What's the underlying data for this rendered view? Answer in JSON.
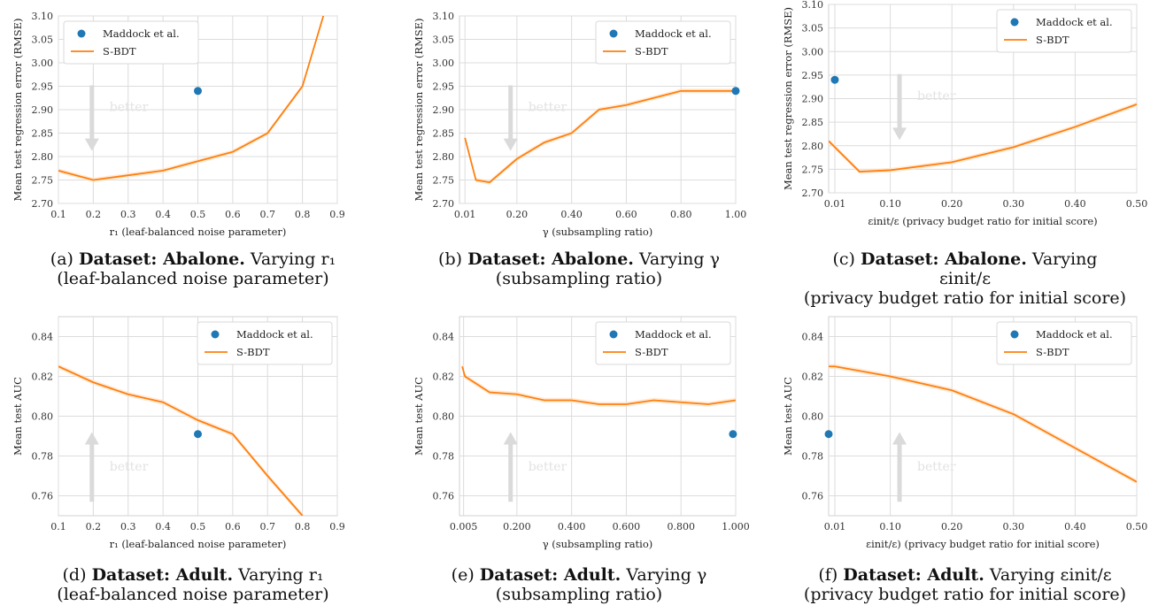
{
  "colors": {
    "maddock": "#1f77b4",
    "sbdt": "#ff7f0e",
    "band": "#fde2c8",
    "grid": "#dcdcdc",
    "arrow": "#dadada"
  },
  "chart_data": [
    {
      "type": "line",
      "xlabel": "r₁ (leaf-balanced noise parameter)",
      "ylabel": "Mean test regression error (RMSE)",
      "xlim": [
        0.1,
        0.9
      ],
      "ylim": [
        2.7,
        3.1
      ],
      "xticks": [
        0.1,
        0.2,
        0.3,
        0.4,
        0.5,
        0.6,
        0.7,
        0.8,
        0.9
      ],
      "xtick_labels": [
        "0.1",
        "0.2",
        "0.3",
        "0.4",
        "0.5",
        "0.6",
        "0.7",
        "0.8",
        "0.9"
      ],
      "yticks": [
        2.7,
        2.75,
        2.8,
        2.85,
        2.9,
        2.95,
        3.0,
        3.05,
        3.1
      ],
      "ytick_labels": [
        "2.70",
        "2.75",
        "2.80",
        "2.85",
        "2.90",
        "2.95",
        "3.00",
        "3.05",
        "3.10"
      ],
      "legend": [
        "Maddock et al.",
        "S-BDT"
      ],
      "legend_position": "top-left",
      "better_label": "better",
      "better_direction": "down",
      "series": [
        {
          "name": "S-BDT",
          "x": [
            0.1,
            0.2,
            0.3,
            0.4,
            0.5,
            0.6,
            0.7,
            0.8,
            0.86
          ],
          "y": [
            2.77,
            2.75,
            2.76,
            2.77,
            2.79,
            2.81,
            2.85,
            2.95,
            3.1
          ]
        },
        {
          "name": "Maddock et al.",
          "x": [
            0.5
          ],
          "y": [
            2.94
          ]
        }
      ]
    },
    {
      "type": "line",
      "xlabel": "γ (subsampling ratio)",
      "ylabel": "Mean test regression error (RMSE)",
      "xlim": [
        -0.01,
        1.0
      ],
      "ylim": [
        2.7,
        3.1
      ],
      "xticks": [
        0.01,
        0.2,
        0.4,
        0.6,
        0.8,
        1.0
      ],
      "xtick_labels": [
        "0.01",
        "0.20",
        "0.40",
        "0.60",
        "0.80",
        "1.00"
      ],
      "yticks": [
        2.7,
        2.75,
        2.8,
        2.85,
        2.9,
        2.95,
        3.0,
        3.05,
        3.1
      ],
      "ytick_labels": [
        "2.70",
        "2.75",
        "2.80",
        "2.85",
        "2.90",
        "2.95",
        "3.00",
        "3.05",
        "3.10"
      ],
      "legend": [
        "Maddock et al.",
        "S-BDT"
      ],
      "legend_position": "top-right",
      "better_label": "better",
      "better_direction": "down",
      "series": [
        {
          "name": "S-BDT",
          "x": [
            0.01,
            0.05,
            0.1,
            0.2,
            0.3,
            0.4,
            0.5,
            0.6,
            0.7,
            0.8,
            0.9,
            1.0
          ],
          "y": [
            2.84,
            2.75,
            2.745,
            2.795,
            2.83,
            2.85,
            2.9,
            2.91,
            2.925,
            2.94,
            2.94,
            2.94
          ]
        },
        {
          "name": "Maddock et al.",
          "x": [
            1.0
          ],
          "y": [
            2.94
          ]
        }
      ]
    },
    {
      "type": "line",
      "xlabel": "εinit/ε (privacy budget ratio for initial score)",
      "ylabel": "Mean test regression error (RMSE)",
      "xlim": [
        0.0,
        0.5
      ],
      "ylim": [
        2.7,
        3.1
      ],
      "xticks": [
        0.01,
        0.1,
        0.2,
        0.3,
        0.4,
        0.5
      ],
      "xtick_labels": [
        "0.01",
        "0.10",
        "0.20",
        "0.30",
        "0.40",
        "0.50"
      ],
      "yticks": [
        2.7,
        2.75,
        2.8,
        2.85,
        2.9,
        2.95,
        3.0,
        3.05,
        3.1
      ],
      "ytick_labels": [
        "2.70",
        "2.75",
        "2.80",
        "2.85",
        "2.90",
        "2.95",
        "3.00",
        "3.05",
        "3.10"
      ],
      "legend": [
        "Maddock et al.",
        "S-BDT"
      ],
      "legend_position": "top-right",
      "better_label": "better",
      "better_direction": "down",
      "series": [
        {
          "name": "S-BDT",
          "x": [
            0.0,
            0.05,
            0.1,
            0.2,
            0.3,
            0.4,
            0.5
          ],
          "y": [
            2.81,
            2.745,
            2.748,
            2.765,
            2.797,
            2.84,
            2.888
          ]
        },
        {
          "name": "Maddock et al.",
          "x": [
            0.01
          ],
          "y": [
            2.94
          ]
        }
      ]
    },
    {
      "type": "line",
      "xlabel": "r₁ (leaf-balanced noise parameter)",
      "ylabel": "Mean test AUC",
      "xlim": [
        0.1,
        0.9
      ],
      "ylim": [
        0.75,
        0.85
      ],
      "xticks": [
        0.1,
        0.2,
        0.3,
        0.4,
        0.5,
        0.6,
        0.7,
        0.8,
        0.9
      ],
      "xtick_labels": [
        "0.1",
        "0.2",
        "0.3",
        "0.4",
        "0.5",
        "0.6",
        "0.7",
        "0.8",
        "0.9"
      ],
      "yticks": [
        0.76,
        0.78,
        0.8,
        0.82,
        0.84
      ],
      "ytick_labels": [
        "0.76",
        "0.78",
        "0.80",
        "0.82",
        "0.84"
      ],
      "legend": [
        "Maddock et al.",
        "S-BDT"
      ],
      "legend_position": "top-right",
      "better_label": "better",
      "better_direction": "up",
      "series": [
        {
          "name": "S-BDT",
          "x": [
            0.1,
            0.2,
            0.3,
            0.4,
            0.5,
            0.6,
            0.7,
            0.8
          ],
          "y": [
            0.825,
            0.817,
            0.811,
            0.807,
            0.798,
            0.791,
            0.77,
            0.75
          ]
        },
        {
          "name": "Maddock et al.",
          "x": [
            0.5
          ],
          "y": [
            0.791
          ]
        }
      ]
    },
    {
      "type": "line",
      "xlabel": "γ (subsampling ratio)",
      "ylabel": "Mean test AUC",
      "xlim": [
        -0.01,
        1.0
      ],
      "ylim": [
        0.75,
        0.85
      ],
      "xticks": [
        0.005,
        0.2,
        0.4,
        0.6,
        0.8,
        1.0
      ],
      "xtick_labels": [
        "0.005",
        "0.200",
        "0.400",
        "0.600",
        "0.800",
        "1.000"
      ],
      "yticks": [
        0.76,
        0.78,
        0.8,
        0.82,
        0.84
      ],
      "ytick_labels": [
        "0.76",
        "0.78",
        "0.80",
        "0.82",
        "0.84"
      ],
      "legend": [
        "Maddock et al.",
        "S-BDT"
      ],
      "legend_position": "top-right",
      "better_label": "better",
      "better_direction": "up",
      "series": [
        {
          "name": "S-BDT",
          "x": [
            0.0,
            0.01,
            0.1,
            0.2,
            0.3,
            0.4,
            0.5,
            0.6,
            0.7,
            0.8,
            0.9,
            1.0
          ],
          "y": [
            0.825,
            0.82,
            0.812,
            0.811,
            0.808,
            0.808,
            0.806,
            0.806,
            0.808,
            0.807,
            0.806,
            0.808
          ]
        },
        {
          "name": "Maddock et al.",
          "x": [
            0.99
          ],
          "y": [
            0.791
          ]
        }
      ]
    },
    {
      "type": "line",
      "xlabel": "εinit/ε) (privacy budget ratio for initial score)",
      "ylabel": "Mean test AUC",
      "xlim": [
        0.0,
        0.5
      ],
      "ylim": [
        0.75,
        0.85
      ],
      "xticks": [
        0.01,
        0.1,
        0.2,
        0.3,
        0.4,
        0.5
      ],
      "xtick_labels": [
        "0.01",
        "0.10",
        "0.20",
        "0.30",
        "0.40",
        "0.50"
      ],
      "yticks": [
        0.76,
        0.78,
        0.8,
        0.82,
        0.84
      ],
      "ytick_labels": [
        "0.76",
        "0.78",
        "0.80",
        "0.82",
        "0.84"
      ],
      "legend": [
        "Maddock et al.",
        "S-BDT"
      ],
      "legend_position": "top-right",
      "better_label": "better",
      "better_direction": "up",
      "series": [
        {
          "name": "S-BDT",
          "x": [
            0.0,
            0.01,
            0.1,
            0.2,
            0.3,
            0.4,
            0.5
          ],
          "y": [
            0.825,
            0.825,
            0.82,
            0.813,
            0.801,
            0.784,
            0.767
          ]
        },
        {
          "name": "Maddock et al.",
          "x": [
            0.0
          ],
          "y": [
            0.791
          ]
        }
      ]
    }
  ],
  "captions": [
    {
      "prefix": "(a)",
      "dataset": "Dataset: Abalone.",
      "rest": "Varying r₁",
      "line2": "(leaf-balanced noise parameter)",
      "line3": ""
    },
    {
      "prefix": "(b)",
      "dataset": "Dataset: Abalone.",
      "rest": "Varying γ",
      "line2": "(subsampling ratio)",
      "line3": ""
    },
    {
      "prefix": "(c)",
      "dataset": "Dataset: Abalone.",
      "rest": "Varying",
      "line2": "εinit/ε",
      "line3": "(privacy budget ratio for initial score)"
    },
    {
      "prefix": "(d)",
      "dataset": "Dataset: Adult.",
      "rest": "Varying r₁",
      "line2": "(leaf-balanced noise parameter)",
      "line3": ""
    },
    {
      "prefix": "(e)",
      "dataset": "Dataset: Adult.",
      "rest": "Varying γ",
      "line2": "(subsampling ratio)",
      "line3": ""
    },
    {
      "prefix": "(f)",
      "dataset": "Dataset: Adult.",
      "rest": "Varying εinit/ε",
      "line2": "(privacy budget ratio for initial score)",
      "line3": ""
    }
  ]
}
